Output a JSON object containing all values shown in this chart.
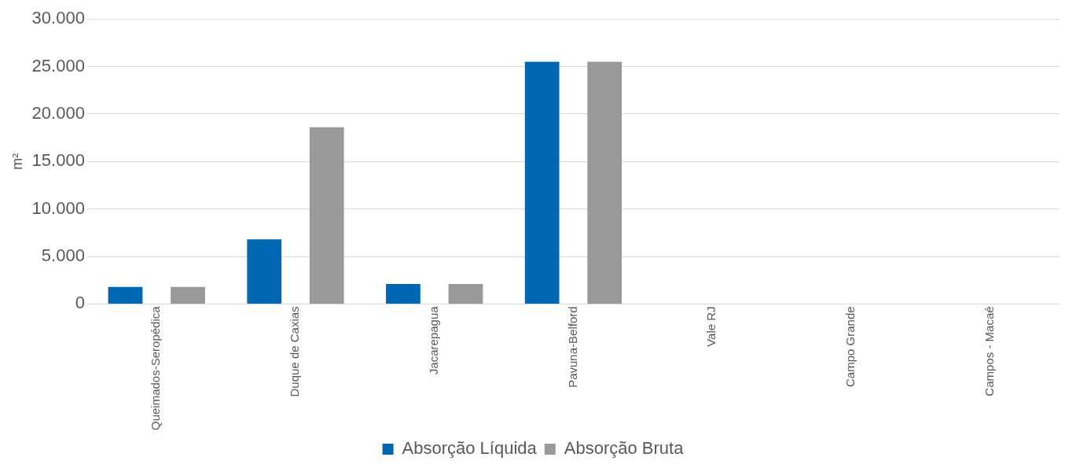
{
  "chart_data": {
    "type": "bar",
    "ylabel": "m²",
    "categories": [
      "Queimados-Seropédica",
      "Duque de Caxias",
      "Jacarepagua",
      "Pavuna-Belford",
      "Vale RJ",
      "Campo Grande",
      "Campos - Macaé"
    ],
    "series": [
      {
        "name": "Absorção Líquida",
        "color": "#0068b3",
        "values": [
          1800,
          6800,
          2100,
          25500,
          null,
          null,
          null
        ]
      },
      {
        "name": "Absorção Bruta",
        "color": "#999999",
        "values": [
          1800,
          18600,
          2100,
          25500,
          null,
          null,
          null
        ]
      }
    ],
    "ylim": [
      0,
      30000
    ],
    "yticks": [
      {
        "value": 0,
        "label": "0"
      },
      {
        "value": 5000,
        "label": "5.000"
      },
      {
        "value": 10000,
        "label": "10.000"
      },
      {
        "value": 15000,
        "label": "15.000"
      },
      {
        "value": 20000,
        "label": "20.000"
      },
      {
        "value": 25000,
        "label": "25.000"
      },
      {
        "value": 30000,
        "label": "30.000"
      }
    ],
    "grid": "y",
    "legend": "bottom"
  }
}
